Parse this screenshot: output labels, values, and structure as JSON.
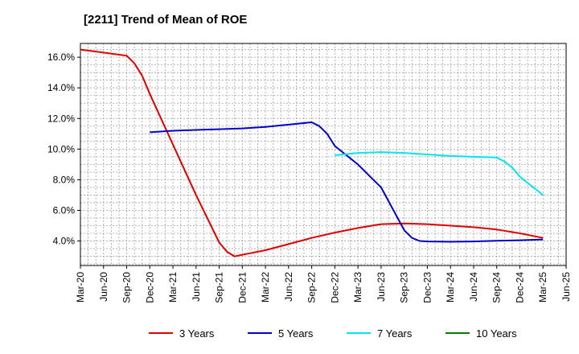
{
  "title": "[2211]  Trend of Mean of ROE",
  "chart_data": {
    "type": "line",
    "title": "[2211]  Trend of Mean of ROE",
    "xlabel": "",
    "ylabel": "",
    "grid": true,
    "legend_position": "bottom",
    "x_ticks": [
      "Mar-20",
      "Jun-20",
      "Sep-20",
      "Dec-20",
      "Mar-21",
      "Jun-21",
      "Sep-21",
      "Dec-21",
      "Mar-22",
      "Jun-22",
      "Sep-22",
      "Dec-22",
      "Mar-23",
      "Jun-23",
      "Sep-23",
      "Dec-23",
      "Mar-24",
      "Jun-24",
      "Sep-24",
      "Dec-24",
      "Mar-25",
      "Jun-25"
    ],
    "y_ticks": [
      "4.0%",
      "6.0%",
      "8.0%",
      "10.0%",
      "12.0%",
      "14.0%",
      "16.0%"
    ],
    "y_tick_values": [
      4,
      6,
      8,
      10,
      12,
      14,
      16
    ],
    "ylim": [
      2.4,
      16.9
    ],
    "series": [
      {
        "name": "3 Years",
        "color": "#e00000",
        "points": [
          [
            "Mar-20",
            16.5
          ],
          [
            "Jun-20",
            16.3
          ],
          [
            "Sep-20",
            16.1
          ],
          [
            "Oct-20",
            15.6
          ],
          [
            "Nov-20",
            14.8
          ],
          [
            "Dec-20",
            13.6
          ],
          [
            "Mar-21",
            10.3
          ],
          [
            "Jun-21",
            7.0
          ],
          [
            "Sep-21",
            3.9
          ],
          [
            "Oct-21",
            3.3
          ],
          [
            "Nov-21",
            3.0
          ],
          [
            "Dec-21",
            3.1
          ],
          [
            "Mar-22",
            3.4
          ],
          [
            "Jun-22",
            3.8
          ],
          [
            "Sep-22",
            4.2
          ],
          [
            "Dec-22",
            4.55
          ],
          [
            "Mar-23",
            4.85
          ],
          [
            "Jun-23",
            5.1
          ],
          [
            "Sep-23",
            5.15
          ],
          [
            "Dec-23",
            5.1
          ],
          [
            "Mar-24",
            5.0
          ],
          [
            "Jun-24",
            4.9
          ],
          [
            "Sep-24",
            4.75
          ],
          [
            "Dec-24",
            4.5
          ],
          [
            "Mar-25",
            4.2
          ]
        ]
      },
      {
        "name": "5 Years",
        "color": "#0000c8",
        "points": [
          [
            "Dec-20",
            11.1
          ],
          [
            "Mar-21",
            11.2
          ],
          [
            "Jun-21",
            11.25
          ],
          [
            "Sep-21",
            11.3
          ],
          [
            "Dec-21",
            11.35
          ],
          [
            "Mar-22",
            11.45
          ],
          [
            "Jun-22",
            11.6
          ],
          [
            "Sep-22",
            11.75
          ],
          [
            "Oct-22",
            11.5
          ],
          [
            "Nov-22",
            11.0
          ],
          [
            "Dec-22",
            10.2
          ],
          [
            "Mar-23",
            9.0
          ],
          [
            "Jun-23",
            7.5
          ],
          [
            "Sep-23",
            4.7
          ],
          [
            "Oct-23",
            4.2
          ],
          [
            "Nov-23",
            4.0
          ],
          [
            "Dec-23",
            3.97
          ],
          [
            "Mar-24",
            3.95
          ],
          [
            "Jun-24",
            3.97
          ],
          [
            "Sep-24",
            4.02
          ],
          [
            "Dec-24",
            4.05
          ],
          [
            "Mar-25",
            4.1
          ]
        ]
      },
      {
        "name": "7 Years",
        "color": "#00e5ee",
        "points": [
          [
            "Dec-22",
            9.6
          ],
          [
            "Mar-23",
            9.75
          ],
          [
            "Jun-23",
            9.8
          ],
          [
            "Sep-23",
            9.75
          ],
          [
            "Dec-23",
            9.65
          ],
          [
            "Mar-24",
            9.55
          ],
          [
            "Jun-24",
            9.5
          ],
          [
            "Sep-24",
            9.45
          ],
          [
            "Oct-24",
            9.2
          ],
          [
            "Nov-24",
            8.8
          ],
          [
            "Dec-24",
            8.2
          ],
          [
            "Mar-25",
            7.0
          ]
        ]
      },
      {
        "name": "10 Years",
        "color": "#008000",
        "points": []
      }
    ]
  }
}
